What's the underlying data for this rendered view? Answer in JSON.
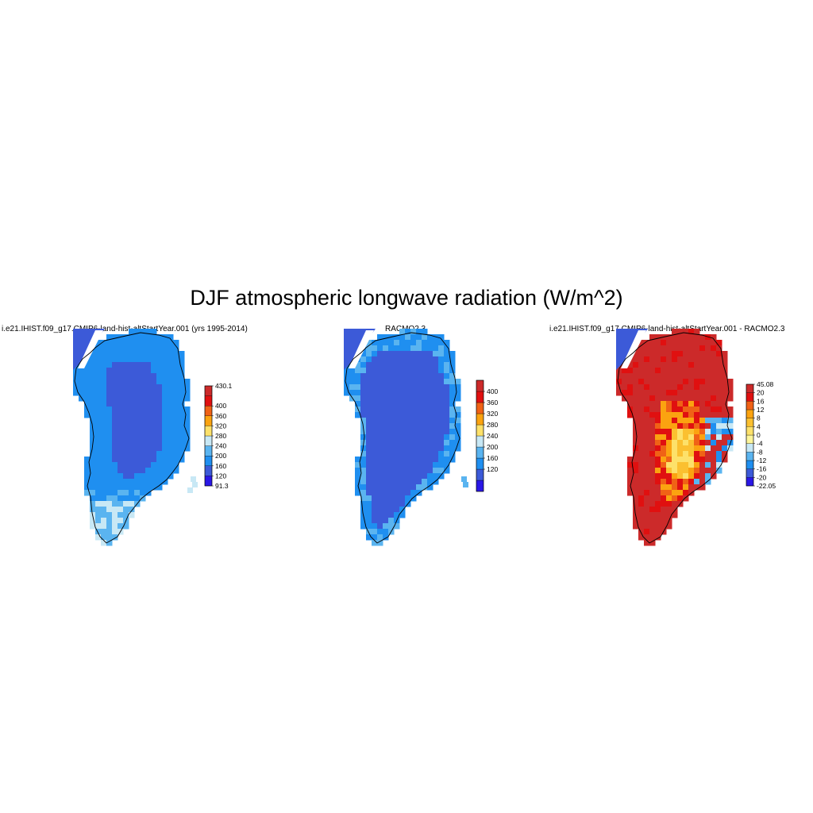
{
  "title": "DJF atmospheric longwave radiation (W/m^2)",
  "chart_data": [
    {
      "type": "heatmap",
      "title": "i.e21.IHIST.f09_g17.CMIP6-land-hist-altStartYear.001 (yrs 1995-2014)",
      "colorbar": {
        "levels": [
          "91.3",
          "120",
          "160",
          "200",
          "240",
          "280",
          "320",
          "360",
          "400",
          "430.1"
        ],
        "colors": [
          "#2a17e6",
          "#3c5ad8",
          "#1f8ff0",
          "#5ab4f0",
          "#c8e8f5",
          "#fde16a",
          "#fba310",
          "#f06216",
          "#e01010",
          "#cc2a2a"
        ]
      },
      "field_summary": "Mostly 120-160 over interior ice sheet, 160-200 near margins, 200-240 at southern coast"
    },
    {
      "type": "heatmap",
      "title": "RACMO2.3",
      "colorbar": {
        "levels": [
          "120",
          "160",
          "200",
          "240",
          "280",
          "320",
          "360",
          "400"
        ],
        "colors": [
          "#2a17e6",
          "#3c5ad8",
          "#1f8ff0",
          "#5ab4f0",
          "#c8e8f5",
          "#fde16a",
          "#fba310",
          "#f06216",
          "#e01010",
          "#cc2a2a"
        ]
      },
      "field_summary": "Mostly 120-160 over almost all of Greenland, 160-200 at edges"
    },
    {
      "type": "heatmap",
      "title": "i.e21.IHIST.f09_g17.CMIP6-land-hist-altStartYear.001 - RACMO2.3",
      "colorbar": {
        "levels": [
          "-22.05",
          "-20",
          "-16",
          "-12",
          "-8",
          "-4",
          "0",
          "4",
          "8",
          "12",
          "16",
          "20",
          "45.08"
        ],
        "colors": [
          "#2a17e6",
          "#3c5ad8",
          "#1f8ff0",
          "#5ab4f0",
          "#c8e8f5",
          "#fdf59a",
          "#fde16a",
          "#fbc030",
          "#fba310",
          "#f06216",
          "#e01010",
          "#cc2a2a"
        ]
      },
      "field_summary": "Mostly above 20 over the north and west, 4-16 in the central-south interior, negative values along the southeast coast"
    }
  ]
}
